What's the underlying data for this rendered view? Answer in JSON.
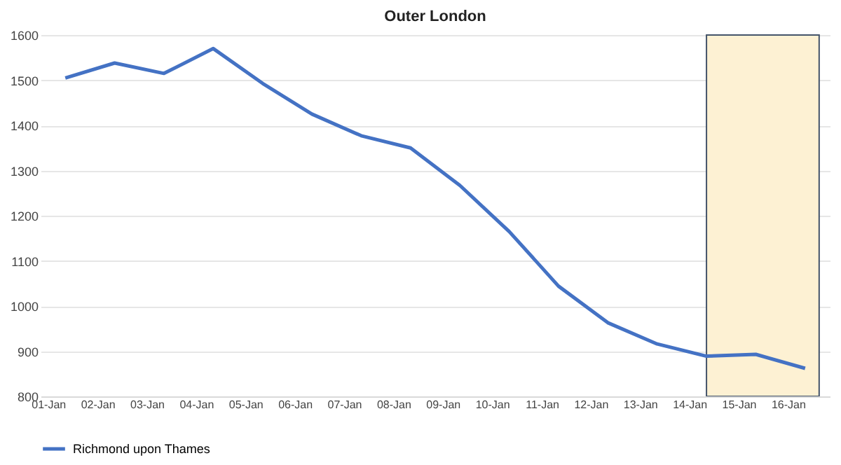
{
  "chart_data": {
    "type": "line",
    "title": "Outer London",
    "categories": [
      "01-Jan",
      "02-Jan",
      "03-Jan",
      "04-Jan",
      "05-Jan",
      "06-Jan",
      "07-Jan",
      "08-Jan",
      "09-Jan",
      "10-Jan",
      "11-Jan",
      "12-Jan",
      "13-Jan",
      "14-Jan",
      "15-Jan",
      "16-Jan"
    ],
    "series": [
      {
        "name": "Richmond upon Thames",
        "color": "#4472c4",
        "values": [
          1505,
          1538,
          1515,
          1570,
          1493,
          1425,
          1377,
          1350,
          1267,
          1165,
          1044,
          963,
          916,
          889,
          893,
          862
        ]
      }
    ],
    "ylim": [
      800,
      1600
    ],
    "yticks": [
      800,
      900,
      1000,
      1100,
      1200,
      1300,
      1400,
      1500,
      1600
    ],
    "grid": "y",
    "legend": "bottom",
    "marker": "none",
    "line_style": "solid",
    "bands": [
      {
        "axis": "x",
        "from": "14-Jan",
        "to": "16-Jan",
        "color": "#fdf1d3"
      }
    ]
  }
}
